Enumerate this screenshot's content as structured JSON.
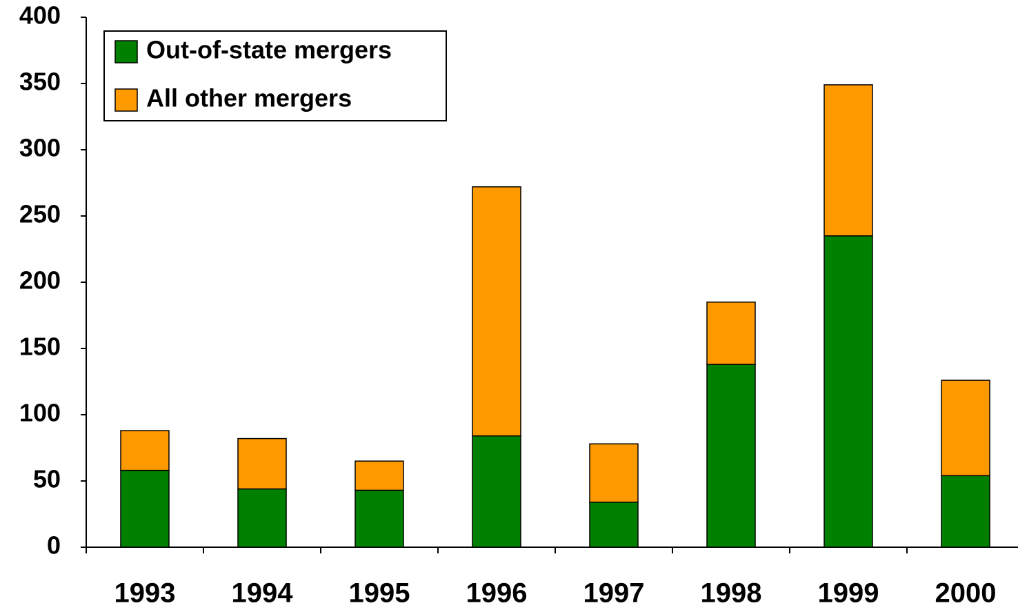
{
  "chart_data": {
    "type": "stacked_bar",
    "categories": [
      "1993",
      "1994",
      "1995",
      "1996",
      "1997",
      "1998",
      "1999",
      "2000"
    ],
    "series": [
      {
        "name": "Out-of-state mergers",
        "color": "#008000",
        "values": [
          58,
          44,
          43,
          84,
          34,
          138,
          235,
          54
        ]
      },
      {
        "name": "All other mergers",
        "color": "#ff9900",
        "values": [
          30,
          38,
          22,
          188,
          44,
          47,
          114,
          72
        ]
      }
    ],
    "ylim": [
      0,
      400
    ],
    "yticks": [
      0,
      50,
      100,
      150,
      200,
      250,
      300,
      350,
      400
    ],
    "legend": "top-left"
  }
}
